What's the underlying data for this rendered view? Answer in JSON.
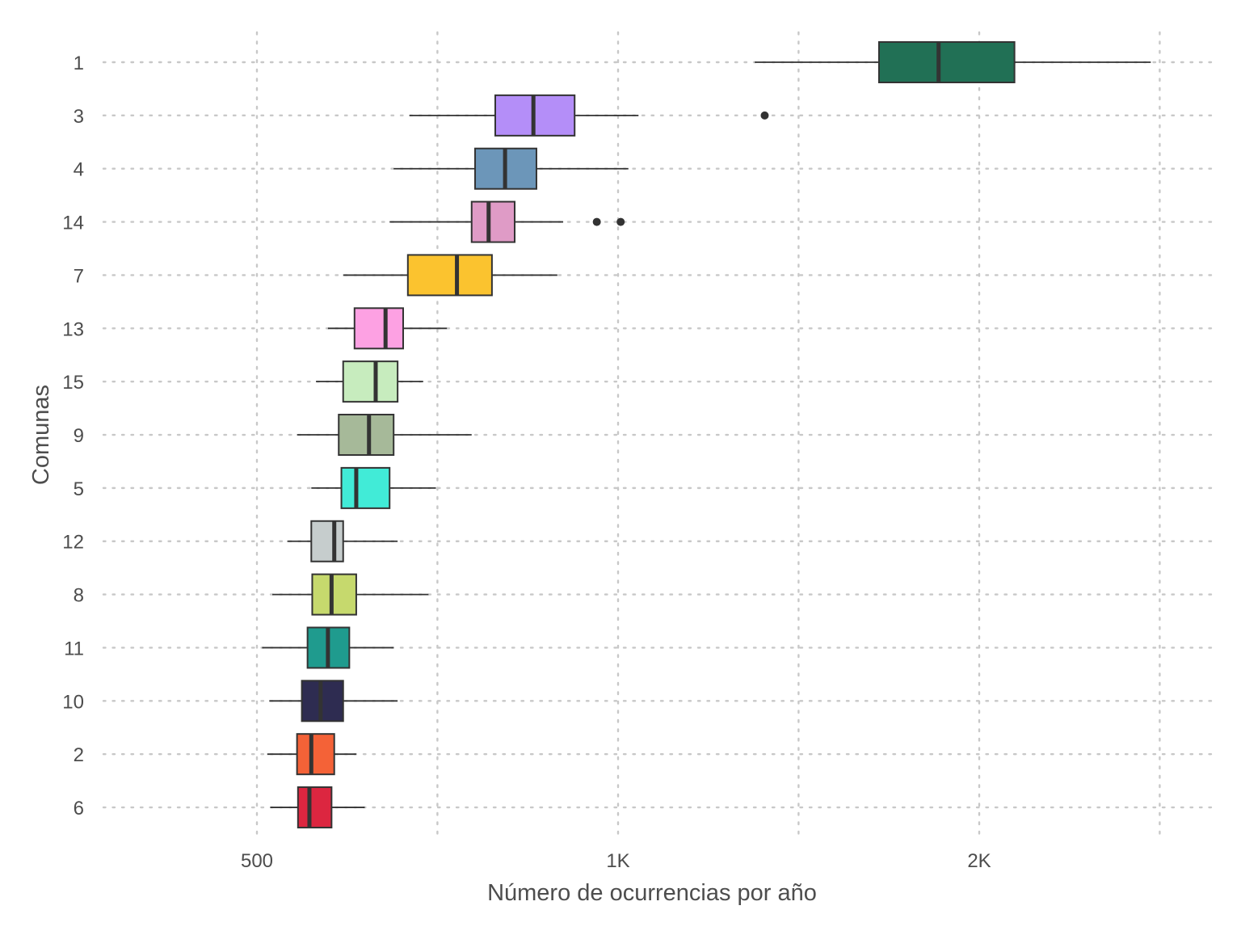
{
  "chart_data": {
    "type": "boxplot",
    "title": "",
    "xlabel": "Número de ocurrencias por año",
    "ylabel": "Comunas",
    "x_scale": "log",
    "xlim": [
      330,
      2800
    ],
    "x_ticks": [
      {
        "value": 500,
        "label": "500"
      },
      {
        "value": 1000,
        "label": "1K"
      },
      {
        "value": 2000,
        "label": "2K"
      }
    ],
    "x_minor_grid": [
      707,
      1414,
      2828
    ],
    "grid": true,
    "legend": "none",
    "categories": [
      "1",
      "3",
      "4",
      "14",
      "7",
      "13",
      "15",
      "9",
      "5",
      "12",
      "8",
      "11",
      "10",
      "2",
      "6"
    ],
    "series": [
      {
        "category": "1",
        "color": "#217055",
        "whisker_low": 1300,
        "q1": 1650,
        "median": 1850,
        "q3": 2140,
        "whisker_high": 2780,
        "outliers": []
      },
      {
        "category": "3",
        "color": "#b48ef8",
        "whisker_low": 670,
        "q1": 790,
        "median": 850,
        "q3": 920,
        "whisker_high": 1040,
        "outliers": [
          1325
        ]
      },
      {
        "category": "4",
        "color": "#6c96b9",
        "whisker_low": 650,
        "q1": 760,
        "median": 805,
        "q3": 855,
        "whisker_high": 1020,
        "outliers": []
      },
      {
        "category": "14",
        "color": "#df9bc6",
        "whisker_low": 645,
        "q1": 755,
        "median": 780,
        "q3": 820,
        "whisker_high": 900,
        "outliers": [
          960,
          1005
        ]
      },
      {
        "category": "7",
        "color": "#fbc32f",
        "whisker_low": 590,
        "q1": 668,
        "median": 734,
        "q3": 785,
        "whisker_high": 890,
        "outliers": []
      },
      {
        "category": "13",
        "color": "#fda1e3",
        "whisker_low": 573,
        "q1": 603,
        "median": 640,
        "q3": 662,
        "whisker_high": 720,
        "outliers": []
      },
      {
        "category": "15",
        "color": "#c7ecbe",
        "whisker_low": 560,
        "q1": 590,
        "median": 628,
        "q3": 655,
        "whisker_high": 688,
        "outliers": []
      },
      {
        "category": "9",
        "color": "#a6b999",
        "whisker_low": 540,
        "q1": 585,
        "median": 620,
        "q3": 650,
        "whisker_high": 755,
        "outliers": []
      },
      {
        "category": "5",
        "color": "#41ebd7",
        "whisker_low": 555,
        "q1": 588,
        "median": 605,
        "q3": 645,
        "whisker_high": 705,
        "outliers": []
      },
      {
        "category": "12",
        "color": "#c6cdcd",
        "whisker_low": 530,
        "q1": 555,
        "median": 580,
        "q3": 590,
        "whisker_high": 655,
        "outliers": []
      },
      {
        "category": "8",
        "color": "#c6d96d",
        "whisker_low": 515,
        "q1": 556,
        "median": 577,
        "q3": 605,
        "whisker_high": 695,
        "outliers": []
      },
      {
        "category": "11",
        "color": "#1f9b8e",
        "whisker_low": 505,
        "q1": 551,
        "median": 573,
        "q3": 597,
        "whisker_high": 650,
        "outliers": []
      },
      {
        "category": "10",
        "color": "#2e2c51",
        "whisker_low": 512,
        "q1": 545,
        "median": 565,
        "q3": 590,
        "whisker_high": 655,
        "outliers": []
      },
      {
        "category": "2",
        "color": "#f46237",
        "whisker_low": 510,
        "q1": 540,
        "median": 555,
        "q3": 580,
        "whisker_high": 605,
        "outliers": []
      },
      {
        "category": "6",
        "color": "#dc2640",
        "whisker_low": 513,
        "q1": 541,
        "median": 553,
        "q3": 577,
        "whisker_high": 615,
        "outliers": []
      }
    ]
  }
}
